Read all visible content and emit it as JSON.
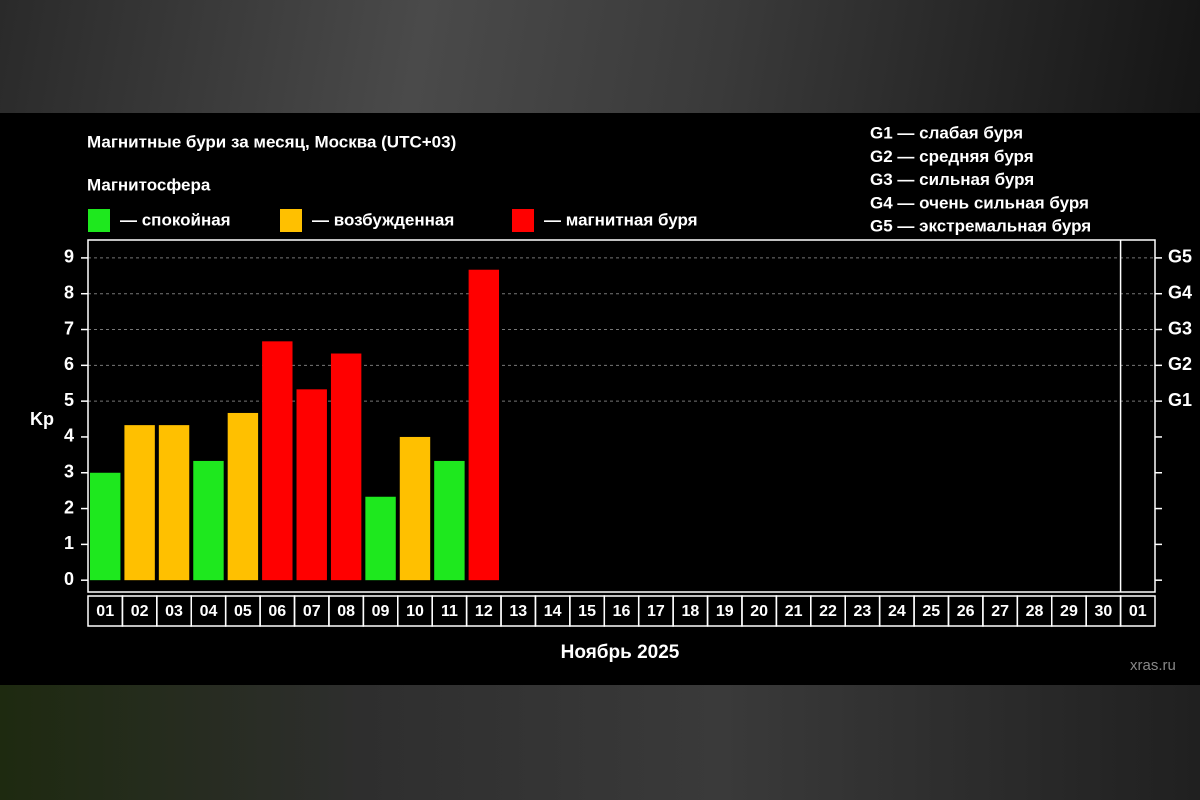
{
  "chart_data": {
    "type": "bar",
    "title": "Магнитные бури за месяц, Москва (UTC+03)",
    "legend_title": "Магнитосфера",
    "legend": [
      {
        "name": "— спокойная",
        "color": "#1ee81e"
      },
      {
        "name": "— возбужденная",
        "color": "#ffc000"
      },
      {
        "name": "— магнитная буря",
        "color": "#ff0000"
      }
    ],
    "g_legend": [
      "G1 — слабая буря",
      "G2 — средняя буря",
      "G3 — сильная буря",
      "G4 — очень сильная буря",
      "G5 — экстремальная буря"
    ],
    "y_label": "Kp",
    "x_label": "Ноябрь 2025",
    "watermark": "xras.ru",
    "categories": [
      "01",
      "02",
      "03",
      "04",
      "05",
      "06",
      "07",
      "08",
      "09",
      "10",
      "11",
      "12",
      "13",
      "14",
      "15",
      "16",
      "17",
      "18",
      "19",
      "20",
      "21",
      "22",
      "23",
      "24",
      "25",
      "26",
      "27",
      "28",
      "29",
      "30",
      "01"
    ],
    "values": [
      3.0,
      4.33,
      4.33,
      3.33,
      4.67,
      6.67,
      5.33,
      6.33,
      2.33,
      4.0,
      3.33,
      8.67,
      null,
      null,
      null,
      null,
      null,
      null,
      null,
      null,
      null,
      null,
      null,
      null,
      null,
      null,
      null,
      null,
      null,
      null,
      null
    ],
    "colors": [
      "#1ee81e",
      "#ffc000",
      "#ffc000",
      "#1ee81e",
      "#ffc000",
      "#ff0000",
      "#ff0000",
      "#ff0000",
      "#1ee81e",
      "#ffc000",
      "#1ee81e",
      "#ff0000",
      null,
      null,
      null,
      null,
      null,
      null,
      null,
      null,
      null,
      null,
      null,
      null,
      null,
      null,
      null,
      null,
      null,
      null,
      null
    ],
    "ylim": [
      -0.33,
      9.5
    ],
    "yticks": [
      0,
      1,
      2,
      3,
      4,
      5,
      6,
      7,
      8,
      9
    ],
    "y2lim": [
      -0.33,
      9.5
    ],
    "y2ticks": [
      {
        "value": 5,
        "label": "G1"
      },
      {
        "value": 6,
        "label": "G2"
      },
      {
        "value": 7,
        "label": "G3"
      },
      {
        "value": 8,
        "label": "G4"
      },
      {
        "value": 9,
        "label": "G5"
      }
    ],
    "grid": true
  }
}
